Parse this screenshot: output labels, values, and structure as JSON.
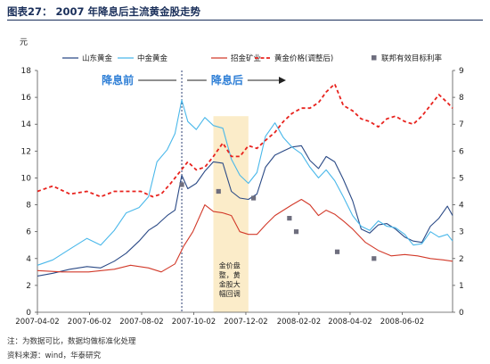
{
  "header": {
    "title": "图表27：  2007 年降息后主流黄金股走势"
  },
  "unit_label": "元",
  "notes": {
    "line1": "注：为数据可比，数据均做标准化处理",
    "line2": "资料来源：wind，华泰研究"
  },
  "colors": {
    "shandong_gold": "#2b4a86",
    "zhongjin_gold": "#4ab8ea",
    "zhaojin_mining": "#d23a2a",
    "gold_price": "#e8231e",
    "fed_rate": "#6e6e7e",
    "cut_line": "#2b3f73",
    "label_text": "#2f7fd6",
    "shade": "#fbecc9"
  },
  "chart_data": {
    "type": "line",
    "title": "2007 年降息后主流黄金股走势",
    "ylabel": "元",
    "ylim_left": [
      0,
      18
    ],
    "yticks_left": [
      0,
      2,
      4,
      6,
      8,
      10,
      12,
      14,
      16,
      18
    ],
    "ylim_right": [
      0,
      9
    ],
    "yticks_right": [
      0,
      1,
      2,
      3,
      4,
      5,
      6,
      7,
      8,
      9
    ],
    "x_start": "2007-04-02",
    "x_end": "2008-07-31",
    "xticks": [
      "2007-04-02",
      "2007-06-02",
      "2007-08-02",
      "2007-10-02",
      "2007-12-02",
      "2008-02-02",
      "2008-04-02",
      "2008-06-02"
    ],
    "legend_position": "top",
    "grid": false,
    "series": [
      {
        "name": "山东黄金",
        "axis": "left",
        "style": "solid",
        "x": [
          "2007-04-02",
          "2007-04-20",
          "2007-05-10",
          "2007-05-30",
          "2007-06-15",
          "2007-07-01",
          "2007-07-15",
          "2007-07-30",
          "2007-08-10",
          "2007-08-20",
          "2007-09-01",
          "2007-09-10",
          "2007-09-18",
          "2007-09-25",
          "2007-10-05",
          "2007-10-15",
          "2007-10-25",
          "2007-11-05",
          "2007-11-15",
          "2007-11-25",
          "2007-12-05",
          "2007-12-15",
          "2007-12-25",
          "2008-01-05",
          "2008-01-15",
          "2008-01-25",
          "2008-02-05",
          "2008-02-15",
          "2008-02-25",
          "2008-03-05",
          "2008-03-15",
          "2008-03-25",
          "2008-04-05",
          "2008-04-15",
          "2008-04-25",
          "2008-05-05",
          "2008-05-15",
          "2008-05-25",
          "2008-06-05",
          "2008-06-15",
          "2008-06-25",
          "2008-07-05",
          "2008-07-15",
          "2008-07-25",
          "2008-07-31"
        ],
        "y": [
          2.7,
          2.9,
          3.2,
          3.4,
          3.3,
          3.8,
          4.4,
          5.3,
          6.1,
          6.5,
          7.2,
          7.6,
          10.2,
          9.2,
          9.6,
          10.5,
          11.2,
          11.1,
          9.0,
          8.5,
          8.4,
          8.8,
          10.8,
          11.7,
          12.0,
          12.3,
          12.4,
          11.3,
          10.7,
          11.6,
          11.2,
          9.9,
          8.3,
          6.2,
          5.9,
          6.5,
          6.6,
          6.2,
          5.6,
          5.3,
          5.2,
          6.4,
          7.0,
          7.9,
          7.2
        ]
      },
      {
        "name": "中金黄金",
        "axis": "left",
        "style": "solid",
        "x": [
          "2007-04-02",
          "2007-04-20",
          "2007-05-10",
          "2007-05-30",
          "2007-06-15",
          "2007-07-01",
          "2007-07-15",
          "2007-07-30",
          "2007-08-10",
          "2007-08-20",
          "2007-09-01",
          "2007-09-10",
          "2007-09-18",
          "2007-09-25",
          "2007-10-05",
          "2007-10-15",
          "2007-10-25",
          "2007-11-05",
          "2007-11-15",
          "2007-11-25",
          "2007-12-05",
          "2007-12-15",
          "2007-12-25",
          "2008-01-05",
          "2008-01-15",
          "2008-01-25",
          "2008-02-05",
          "2008-02-15",
          "2008-02-25",
          "2008-03-05",
          "2008-03-15",
          "2008-03-25",
          "2008-04-05",
          "2008-04-15",
          "2008-04-25",
          "2008-05-05",
          "2008-05-15",
          "2008-05-25",
          "2008-06-05",
          "2008-06-15",
          "2008-06-25",
          "2008-07-05",
          "2008-07-15",
          "2008-07-25",
          "2008-07-31"
        ],
        "y": [
          3.5,
          3.9,
          4.7,
          5.5,
          5.0,
          6.1,
          7.4,
          7.8,
          8.6,
          11.2,
          12.1,
          13.3,
          15.8,
          14.2,
          13.6,
          14.5,
          13.9,
          13.7,
          11.4,
          10.2,
          9.6,
          10.4,
          13.1,
          14.1,
          13.0,
          12.3,
          11.8,
          10.8,
          10.0,
          10.6,
          9.8,
          8.6,
          7.2,
          6.4,
          6.1,
          6.8,
          6.4,
          6.3,
          5.8,
          5.0,
          5.1,
          6.0,
          5.6,
          5.8,
          5.3
        ]
      },
      {
        "name": "招金矿业",
        "axis": "left",
        "style": "solid",
        "x": [
          "2007-04-02",
          "2007-05-01",
          "2007-06-01",
          "2007-07-01",
          "2007-07-20",
          "2007-08-10",
          "2007-08-25",
          "2007-09-10",
          "2007-09-20",
          "2007-10-01",
          "2007-10-15",
          "2007-10-25",
          "2007-11-05",
          "2007-11-15",
          "2007-11-25",
          "2007-12-05",
          "2007-12-15",
          "2007-12-25",
          "2008-01-05",
          "2008-01-15",
          "2008-01-25",
          "2008-02-05",
          "2008-02-15",
          "2008-02-25",
          "2008-03-05",
          "2008-03-15",
          "2008-03-25",
          "2008-04-05",
          "2008-04-20",
          "2008-05-05",
          "2008-05-20",
          "2008-06-05",
          "2008-06-20",
          "2008-07-05",
          "2008-07-20",
          "2008-07-31"
        ],
        "y": [
          3.1,
          3.0,
          3.0,
          3.2,
          3.5,
          3.3,
          3.0,
          3.6,
          4.9,
          6.0,
          8.0,
          7.5,
          7.4,
          7.2,
          6.0,
          5.8,
          5.8,
          6.5,
          7.2,
          7.6,
          8.0,
          8.4,
          8.0,
          7.2,
          7.6,
          7.3,
          6.8,
          6.2,
          5.2,
          4.6,
          4.2,
          4.3,
          4.2,
          4.0,
          3.9,
          3.8
        ]
      },
      {
        "name": "黄金价格(调整后)",
        "axis": "right",
        "style": "dashed",
        "x": [
          "2007-04-02",
          "2007-04-20",
          "2007-05-10",
          "2007-05-30",
          "2007-06-15",
          "2007-07-01",
          "2007-07-15",
          "2007-08-01",
          "2007-08-15",
          "2007-08-25",
          "2007-09-05",
          "2007-09-15",
          "2007-09-25",
          "2007-10-05",
          "2007-10-15",
          "2007-10-25",
          "2007-11-05",
          "2007-11-15",
          "2007-11-25",
          "2007-12-05",
          "2007-12-15",
          "2007-12-25",
          "2008-01-05",
          "2008-01-15",
          "2008-01-25",
          "2008-02-05",
          "2008-02-15",
          "2008-02-25",
          "2008-03-05",
          "2008-03-15",
          "2008-03-25",
          "2008-04-05",
          "2008-04-15",
          "2008-04-25",
          "2008-05-05",
          "2008-05-15",
          "2008-05-25",
          "2008-06-05",
          "2008-06-15",
          "2008-06-25",
          "2008-07-05",
          "2008-07-15",
          "2008-07-25",
          "2008-07-31"
        ],
        "y": [
          4.5,
          4.7,
          4.4,
          4.5,
          4.3,
          4.5,
          4.5,
          4.5,
          4.3,
          4.4,
          4.8,
          5.2,
          5.6,
          5.3,
          5.4,
          5.8,
          6.3,
          5.8,
          5.8,
          6.2,
          6.1,
          6.4,
          6.7,
          7.1,
          7.4,
          7.6,
          7.6,
          7.8,
          8.2,
          8.5,
          7.7,
          7.5,
          7.2,
          7.1,
          6.9,
          7.2,
          7.3,
          7.1,
          7.0,
          7.3,
          7.7,
          8.1,
          7.8,
          7.6
        ]
      },
      {
        "name": "联邦有效目标利率",
        "axis": "right",
        "style": "marker",
        "x": [
          "2007-09-18",
          "2007-10-31",
          "2007-12-11",
          "2008-01-22",
          "2008-01-30",
          "2008-03-18",
          "2008-04-30"
        ],
        "y": [
          4.75,
          4.5,
          4.25,
          3.5,
          3.0,
          2.25,
          2.0
        ]
      }
    ],
    "annotations": [
      {
        "text": "降息前",
        "x": "2007-07-05",
        "y": 17.0
      },
      {
        "text": "降息后",
        "x": "2007-11-10",
        "y": 17.0
      },
      {
        "text": "金价盘",
        "x": "2007-11-13",
        "y": 3.3
      },
      {
        "text": "整，黄",
        "x": "2007-11-13",
        "y": 2.6
      },
      {
        "text": "金股大",
        "x": "2007-11-13",
        "y": 1.9
      },
      {
        "text": "幅回调",
        "x": "2007-11-13",
        "y": 1.2
      }
    ],
    "rate_cut_date": "2007-09-18",
    "shaded_range": [
      "2007-10-25",
      "2007-12-05"
    ]
  }
}
